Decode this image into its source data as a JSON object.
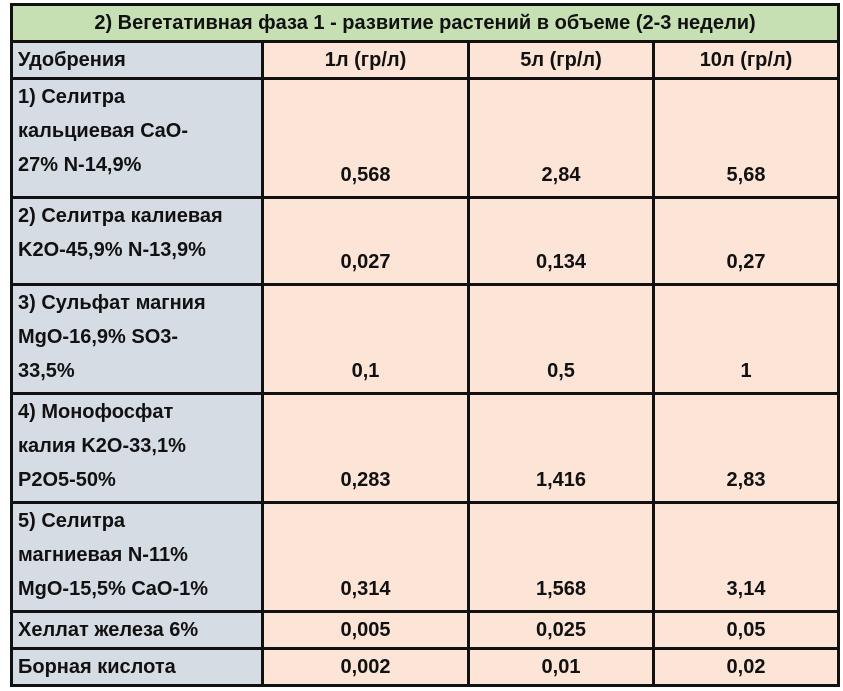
{
  "title": "2) Вегетативная фаза 1 - развитие растений в объеме (2-3 недели)",
  "header": [
    "Удобрения",
    "1л (гр/л)",
    "5л (гр/л)",
    "10л (гр/л)"
  ],
  "rows": [
    {
      "label": [
        "1) Селитра",
        "кальциевая CaO-",
        "27% N-14,9%"
      ],
      "values": [
        "0,568",
        "2,84",
        "5,68"
      ]
    },
    {
      "label": [
        "2) Селитра калиевая",
        "K2O-45,9% N-13,9%"
      ],
      "values": [
        "0,027",
        "0,134",
        "0,27"
      ]
    },
    {
      "label": [
        "3) Сульфат магния",
        "MgO-16,9% SO3-",
        "33,5%"
      ],
      "values": [
        "0,1",
        "0,5",
        "1"
      ]
    },
    {
      "label": [
        "4) Монофосфат",
        "калия K2O-33,1%",
        "P2O5-50%"
      ],
      "values": [
        "0,283",
        "1,416",
        "2,83"
      ]
    },
    {
      "label": [
        "5) Селитра",
        "магниевая N-11%",
        "MgO-15,5% CaO-1%"
      ],
      "values": [
        "0,314",
        "1,568",
        "3,14"
      ]
    },
    {
      "label": [
        "Хеллат железа 6%"
      ],
      "values": [
        "0,005",
        "0,025",
        "0,05"
      ]
    },
    {
      "label": [
        "Борная кислота"
      ],
      "values": [
        "0,002",
        "0,01",
        "0,02"
      ]
    }
  ],
  "colors": {
    "title_bg": "#c6e0b4",
    "label_bg": "#d6dce4",
    "value_bg": "#fce4d6"
  }
}
